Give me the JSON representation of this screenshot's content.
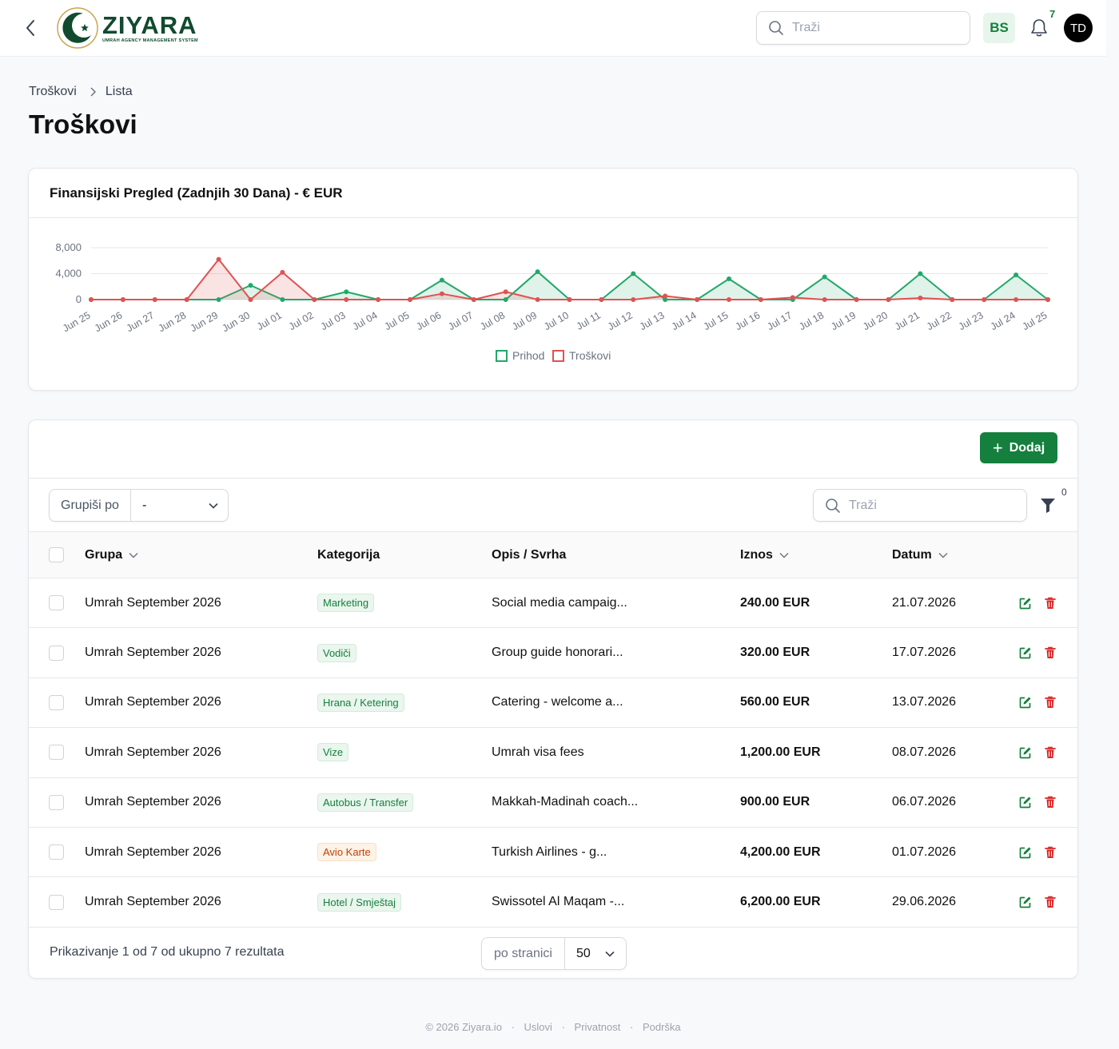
{
  "header": {
    "logo_word": "ZIYARA",
    "logo_sub": "UMRAH AGENCY MANAGEMENT SYSTEM",
    "search_placeholder": "Traži",
    "language": "BS",
    "notification_count": "7",
    "avatar_initials": "TD"
  },
  "breadcrumb": [
    "Troškovi",
    "Lista"
  ],
  "page_title": "Troškovi",
  "chart_card": {
    "title": "Finansijski Pregled (Zadnjih 30 Dana) - € EUR"
  },
  "chart_data": {
    "type": "area",
    "categories": [
      "Jun 25",
      "Jun 26",
      "Jun 27",
      "Jun 28",
      "Jun 29",
      "Jun 30",
      "Jul 01",
      "Jul 02",
      "Jul 03",
      "Jul 04",
      "Jul 05",
      "Jul 06",
      "Jul 07",
      "Jul 08",
      "Jul 09",
      "Jul 10",
      "Jul 11",
      "Jul 12",
      "Jul 13",
      "Jul 14",
      "Jul 15",
      "Jul 16",
      "Jul 17",
      "Jul 18",
      "Jul 19",
      "Jul 20",
      "Jul 21",
      "Jul 22",
      "Jul 23",
      "Jul 24",
      "Jul 25"
    ],
    "series": [
      {
        "name": "Prihod",
        "color": "#22a86a",
        "values": [
          0,
          0,
          0,
          0,
          0,
          2200,
          0,
          0,
          1200,
          0,
          0,
          3000,
          0,
          0,
          4300,
          0,
          0,
          4000,
          0,
          0,
          3200,
          0,
          0,
          3500,
          0,
          0,
          4000,
          0,
          0,
          3800,
          0
        ]
      },
      {
        "name": "Troškovi",
        "color": "#e05252",
        "values": [
          0,
          0,
          0,
          0,
          6200,
          0,
          4200,
          0,
          0,
          0,
          0,
          900,
          0,
          1200,
          0,
          0,
          0,
          0,
          560,
          0,
          0,
          0,
          320,
          0,
          0,
          0,
          240,
          0,
          0,
          0,
          0
        ]
      }
    ],
    "y_ticks": [
      "8,000",
      "4,000",
      "0"
    ],
    "ylim": [
      0,
      8000
    ],
    "grid": true,
    "legend": "bottom-center"
  },
  "list": {
    "add_label": "Dodaj",
    "group_by_label": "Grupiši po",
    "group_by_value": "-",
    "search_placeholder": "Traži",
    "filter_count": "0",
    "columns": {
      "group": "Grupa",
      "category": "Kategorija",
      "desc": "Opis / Svrha",
      "amount": "Iznos",
      "date": "Datum"
    },
    "rows": [
      {
        "group": "Umrah September 2026",
        "category": "Marketing",
        "cat_style": "green",
        "desc": "Social media campaig...",
        "amount": "240.00 EUR",
        "date": "21.07.2026"
      },
      {
        "group": "Umrah September 2026",
        "category": "Vodiči",
        "cat_style": "green",
        "desc": "Group guide honorari...",
        "amount": "320.00 EUR",
        "date": "17.07.2026"
      },
      {
        "group": "Umrah September 2026",
        "category": "Hrana / Ketering",
        "cat_style": "green",
        "desc": "Catering - welcome a...",
        "amount": "560.00 EUR",
        "date": "13.07.2026"
      },
      {
        "group": "Umrah September 2026",
        "category": "Vize",
        "cat_style": "green",
        "desc": "Umrah visa fees",
        "amount": "1,200.00 EUR",
        "date": "08.07.2026"
      },
      {
        "group": "Umrah September 2026",
        "category": "Autobus / Transfer",
        "cat_style": "green",
        "desc": "Makkah-Madinah coach...",
        "amount": "900.00 EUR",
        "date": "06.07.2026"
      },
      {
        "group": "Umrah September 2026",
        "category": "Avio Karte",
        "cat_style": "orange",
        "desc": "Turkish Airlines - g...",
        "amount": "4,200.00 EUR",
        "date": "01.07.2026"
      },
      {
        "group": "Umrah September 2026",
        "category": "Hotel / Smještaj",
        "cat_style": "green",
        "desc": "Swissotel Al Maqam -...",
        "amount": "6,200.00 EUR",
        "date": "29.06.2026"
      }
    ],
    "summary": "Prikazivanje 1 od 7 od ukupno 7 rezultata",
    "per_page_label": "po stranici",
    "per_page_value": "50"
  },
  "footer": {
    "copyright": "© 2026 Ziyara.io",
    "links": [
      "Uslovi",
      "Privatnost",
      "Podrška"
    ]
  },
  "icons": {
    "back": "chevron-left-icon",
    "search": "search-icon",
    "bell": "bell-icon",
    "filter": "funnel-icon",
    "edit": "edit-icon",
    "delete": "trash-icon"
  }
}
